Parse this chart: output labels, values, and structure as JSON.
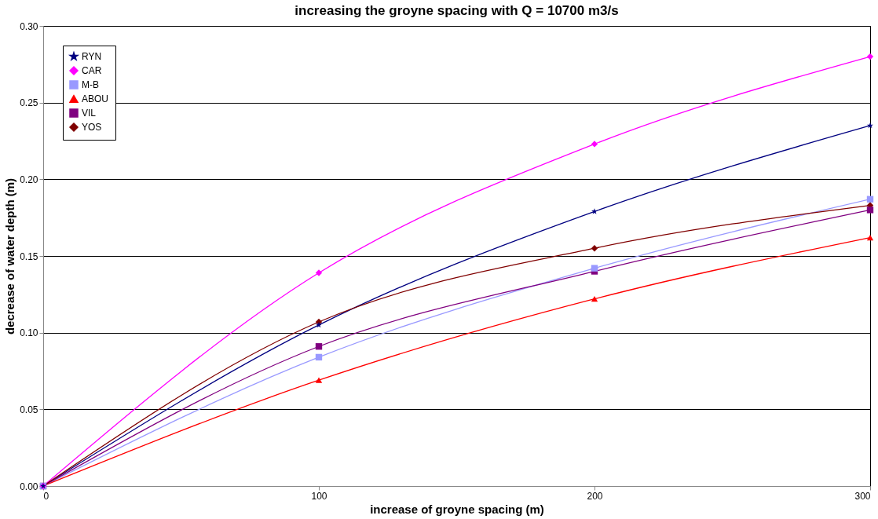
{
  "chart_data": {
    "type": "line",
    "title": "increasing the groyne spacing with Q = 10700 m3/s",
    "xlabel": "increase of groyne spacing (m)",
    "ylabel": "decrease of water depth (m)",
    "x": [
      0,
      100,
      200,
      300
    ],
    "series": [
      {
        "name": "RYN",
        "color": "#000080",
        "marker": "star",
        "values": [
          0,
          0.105,
          0.179,
          0.235
        ]
      },
      {
        "name": "CAR",
        "color": "#ff00ff",
        "marker": "diamond",
        "values": [
          0,
          0.139,
          0.223,
          0.28
        ]
      },
      {
        "name": "M-B",
        "color": "#9999ff",
        "marker": "square",
        "values": [
          0,
          0.084,
          0.142,
          0.187
        ]
      },
      {
        "name": "ABOU",
        "color": "#ff0000",
        "marker": "triangle",
        "values": [
          0,
          0.069,
          0.122,
          0.162
        ]
      },
      {
        "name": "VIL",
        "color": "#800080",
        "marker": "square",
        "values": [
          0,
          0.091,
          0.14,
          0.18
        ]
      },
      {
        "name": "YOS",
        "color": "#800000",
        "marker": "diamond",
        "values": [
          0,
          0.107,
          0.155,
          0.183
        ]
      }
    ],
    "xlim": [
      0,
      300
    ],
    "xticks": [
      0,
      100,
      200,
      300
    ],
    "ylim": [
      0,
      0.3
    ],
    "yticks": [
      {
        "value": 0,
        "label": "0.00"
      },
      {
        "value": 0.05,
        "label": "0.05"
      },
      {
        "value": 0.1,
        "label": "0.10"
      },
      {
        "value": 0.15,
        "label": "0.15"
      },
      {
        "value": 0.2,
        "label": "0.20"
      },
      {
        "value": 0.25,
        "label": "0.25"
      },
      {
        "value": 0.3,
        "label": "0.30"
      }
    ],
    "grid": "y",
    "legend": "top left",
    "line_style": "solid"
  }
}
